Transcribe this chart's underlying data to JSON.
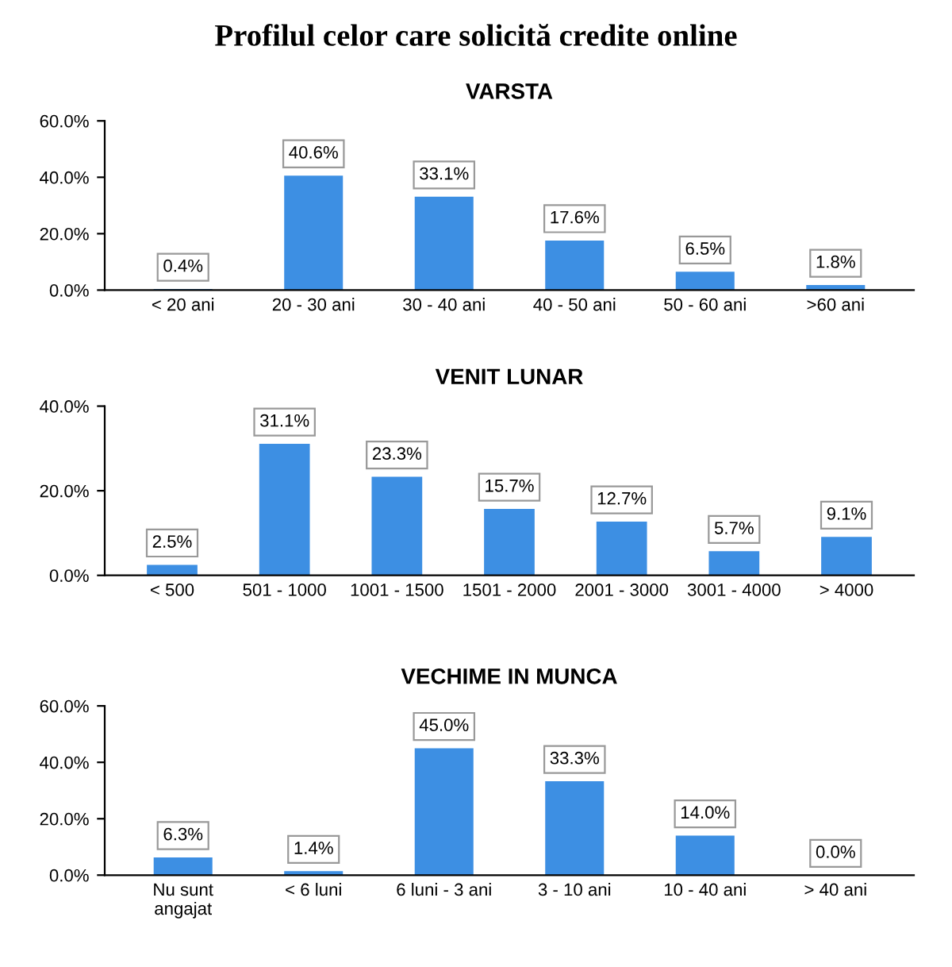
{
  "chart_data": [
    {
      "type": "bar",
      "title": "VARSTA",
      "annotations": [
        "Profilul celor care solicită credite online"
      ],
      "categories": [
        "< 20 ani",
        "20 - 30 ani",
        "30 - 40 ani",
        "40 - 50 ani",
        "50 - 60 ani",
        ">60 ani"
      ],
      "values": [
        0.4,
        40.6,
        33.1,
        17.6,
        6.5,
        1.8
      ],
      "value_labels": [
        "0.4%",
        "40.6%",
        "33.1%",
        "17.6%",
        "6.5%",
        "1.8%"
      ],
      "color": "#3d8fe3",
      "ylim": [
        0,
        60
      ],
      "yticks": [
        {
          "value": 0,
          "label": "0.0%"
        },
        {
          "value": 20,
          "label": "20.0%"
        },
        {
          "value": 40,
          "label": "40.0%"
        },
        {
          "value": 60,
          "label": "60.0%"
        }
      ],
      "grid": false,
      "legend": false
    },
    {
      "type": "bar",
      "title": "VENIT LUNAR",
      "categories": [
        "< 500",
        "501 - 1000",
        "1001 - 1500",
        "1501 - 2000",
        "2001 - 3000",
        "3001 - 4000",
        "> 4000"
      ],
      "values": [
        2.5,
        31.1,
        23.3,
        15.7,
        12.7,
        5.7,
        9.1
      ],
      "value_labels": [
        "2.5%",
        "31.1%",
        "23.3%",
        "15.7%",
        "12.7%",
        "5.7%",
        "9.1%"
      ],
      "color": "#3d8fe3",
      "ylim": [
        0,
        40
      ],
      "yticks": [
        {
          "value": 0,
          "label": "0.0%"
        },
        {
          "value": 20,
          "label": "20.0%"
        },
        {
          "value": 40,
          "label": "40.0%"
        }
      ],
      "grid": false,
      "legend": false
    },
    {
      "type": "bar",
      "title": "VECHIME IN MUNCA",
      "categories": [
        "Nu sunt\nangajat",
        "< 6 luni",
        "6 luni - 3 ani",
        "3 - 10 ani",
        "10 - 40 ani",
        "> 40 ani"
      ],
      "values": [
        6.3,
        1.4,
        45.0,
        33.3,
        14.0,
        0.0
      ],
      "value_labels": [
        "6.3%",
        "1.4%",
        "45.0%",
        "33.3%",
        "14.0%",
        "0.0%"
      ],
      "color": "#3d8fe3",
      "ylim": [
        0,
        60
      ],
      "yticks": [
        {
          "value": 0,
          "label": "0.0%"
        },
        {
          "value": 20,
          "label": "20.0%"
        },
        {
          "value": 40,
          "label": "40.0%"
        },
        {
          "value": 60,
          "label": "60.0%"
        }
      ],
      "grid": false,
      "legend": false
    }
  ]
}
